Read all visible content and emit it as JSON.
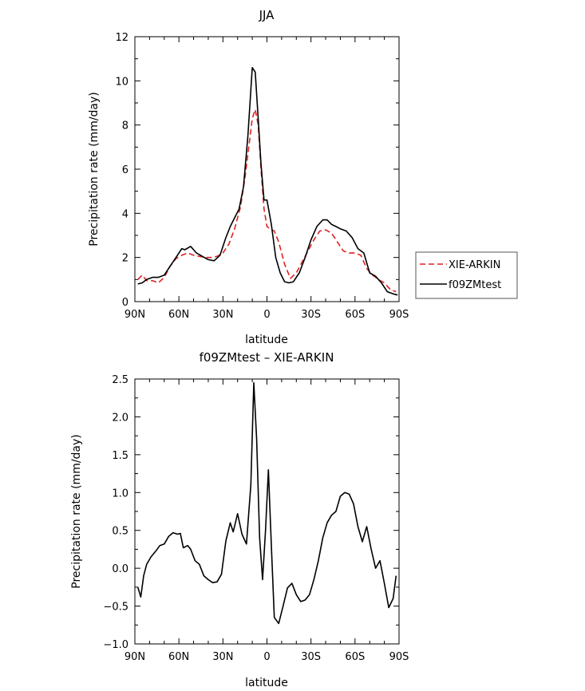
{
  "chart_data": [
    {
      "type": "line",
      "title": "JJA",
      "xlabel": "latitude",
      "ylabel": "Precipitation rate (mm/day)",
      "xlim": [
        90,
        -90
      ],
      "ylim": [
        0,
        12
      ],
      "x_ticks": [
        90,
        60,
        30,
        0,
        -30,
        -60,
        -90
      ],
      "x_tick_labels": [
        "90N",
        "60N",
        "30N",
        "0",
        "30S",
        "60S",
        "90S"
      ],
      "y_ticks": [
        0,
        2,
        4,
        6,
        8,
        10,
        12
      ],
      "y_tick_labels": [
        "0",
        "2",
        "4",
        "6",
        "8",
        "10",
        "12"
      ],
      "legend": {
        "placement": "outside-right"
      },
      "series": [
        {
          "name": "XIE-ARKIN",
          "color": "#e02020",
          "dash": "dashed",
          "x": [
            88,
            85,
            82,
            78,
            74,
            70,
            66,
            62,
            58,
            54,
            50,
            46,
            42,
            38,
            34,
            30,
            26,
            22,
            18,
            15,
            12,
            10,
            8,
            6,
            4,
            2,
            0,
            -2,
            -5,
            -8,
            -12,
            -16,
            -20,
            -24,
            -28,
            -32,
            -36,
            -40,
            -44,
            -48,
            -52,
            -56,
            -60,
            -64,
            -68,
            -72,
            -76,
            -80,
            -84,
            -88
          ],
          "values": [
            1.0,
            1.2,
            0.95,
            0.95,
            0.85,
            1.1,
            1.6,
            1.95,
            2.1,
            2.2,
            2.1,
            2.05,
            2.0,
            2.0,
            2.05,
            2.2,
            2.6,
            3.3,
            4.3,
            5.6,
            7.2,
            8.3,
            8.7,
            8.0,
            6.0,
            4.2,
            3.4,
            3.3,
            3.2,
            2.7,
            1.7,
            1.05,
            1.3,
            1.8,
            2.3,
            2.8,
            3.2,
            3.25,
            3.1,
            2.7,
            2.3,
            2.2,
            2.2,
            2.1,
            1.5,
            1.2,
            1.0,
            0.85,
            0.55,
            0.45
          ]
        },
        {
          "name": "f09ZMtest",
          "color": "#000000",
          "dash": "solid",
          "x": [
            88,
            85,
            82,
            78,
            74,
            70,
            66,
            62,
            58,
            56,
            52,
            48,
            44,
            40,
            36,
            32,
            28,
            25,
            22,
            19,
            16,
            13,
            10,
            8,
            6,
            4,
            2,
            0,
            -3,
            -6,
            -9,
            -12,
            -15,
            -18,
            -22,
            -26,
            -30,
            -34,
            -38,
            -41,
            -44,
            -47,
            -50,
            -54,
            -58,
            -62,
            -66,
            -70,
            -74,
            -78,
            -82,
            -86,
            -89
          ],
          "values": [
            0.8,
            0.85,
            1.0,
            1.1,
            1.1,
            1.2,
            1.6,
            2.0,
            2.4,
            2.35,
            2.5,
            2.2,
            2.05,
            1.9,
            1.85,
            2.1,
            2.9,
            3.4,
            3.8,
            4.2,
            5.2,
            7.5,
            10.6,
            10.4,
            8.3,
            6.2,
            4.6,
            4.6,
            3.5,
            2.0,
            1.3,
            0.9,
            0.85,
            0.9,
            1.3,
            2.0,
            2.8,
            3.4,
            3.7,
            3.7,
            3.5,
            3.4,
            3.3,
            3.2,
            2.9,
            2.4,
            2.2,
            1.3,
            1.15,
            0.85,
            0.45,
            0.35,
            0.3
          ]
        }
      ]
    },
    {
      "type": "line",
      "title": "f09ZMtest – XIE-ARKIN",
      "xlabel": "latitude",
      "ylabel": "Precipitation rate (mm/day)",
      "xlim": [
        90,
        -90
      ],
      "ylim": [
        -1.0,
        2.5
      ],
      "x_ticks": [
        90,
        60,
        30,
        0,
        -30,
        -60,
        -90
      ],
      "x_tick_labels": [
        "90N",
        "60N",
        "30N",
        "0",
        "30S",
        "60S",
        "90S"
      ],
      "y_ticks": [
        -1.0,
        -0.5,
        0.0,
        0.5,
        1.0,
        1.5,
        2.0,
        2.5
      ],
      "y_tick_labels": [
        "−1.0",
        "−0.5",
        "0.0",
        "0.5",
        "1.0",
        "1.5",
        "2.0",
        "2.5"
      ],
      "series": [
        {
          "color": "#000000",
          "dash": "solid",
          "x": [
            88,
            86,
            84,
            82,
            79,
            76,
            73,
            70,
            67,
            64,
            61,
            59,
            57,
            54,
            52,
            49,
            46,
            43,
            40,
            37,
            34,
            31,
            28,
            25,
            23,
            20,
            17,
            14,
            11,
            9,
            7,
            5,
            3,
            1,
            -1,
            -3,
            -5,
            -8,
            -11,
            -14,
            -17,
            -20,
            -23,
            -26,
            -29,
            -32,
            -35,
            -38,
            -41,
            -44,
            -47,
            -50,
            -53,
            -56,
            -59,
            -62,
            -65,
            -68,
            -71,
            -74,
            -77,
            -80,
            -83,
            -86,
            -88
          ],
          "values": [
            -0.25,
            -0.38,
            -0.1,
            0.05,
            0.15,
            0.22,
            0.3,
            0.32,
            0.42,
            0.47,
            0.45,
            0.46,
            0.27,
            0.3,
            0.25,
            0.1,
            0.05,
            -0.1,
            -0.15,
            -0.19,
            -0.18,
            -0.08,
            0.36,
            0.6,
            0.48,
            0.72,
            0.45,
            0.32,
            1.1,
            2.45,
            1.7,
            0.4,
            -0.15,
            0.5,
            1.3,
            0.3,
            -0.65,
            -0.73,
            -0.5,
            -0.26,
            -0.2,
            -0.35,
            -0.44,
            -0.42,
            -0.35,
            -0.15,
            0.1,
            0.4,
            0.6,
            0.7,
            0.75,
            0.95,
            1.0,
            0.98,
            0.85,
            0.55,
            0.35,
            0.55,
            0.25,
            0.0,
            0.1,
            -0.2,
            -0.52,
            -0.4,
            -0.1
          ]
        }
      ]
    }
  ]
}
